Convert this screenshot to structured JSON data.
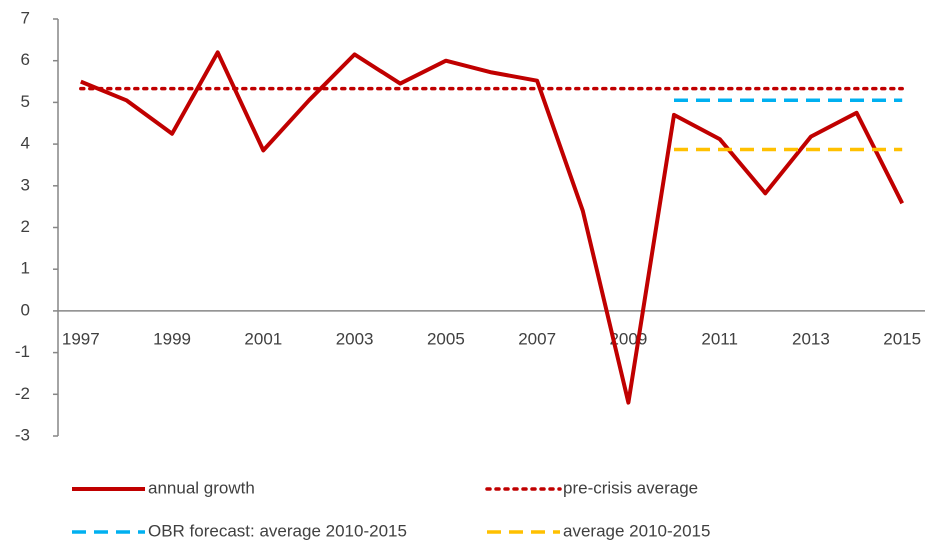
{
  "chart_data": {
    "type": "line",
    "categories": [
      "1997",
      null,
      "1999",
      null,
      "2001",
      null,
      "2003",
      null,
      "2005",
      null,
      "2007",
      null,
      "2009",
      null,
      "2011",
      null,
      "2013",
      null,
      "2015"
    ],
    "series": [
      {
        "name": "annual growth",
        "color": "#c00000",
        "dash": "solid",
        "values": [
          5.5,
          5.05,
          4.25,
          6.2,
          3.85,
          5.05,
          6.15,
          5.45,
          6.0,
          5.72,
          5.52,
          2.4,
          -2.2,
          4.7,
          4.12,
          2.82,
          4.18,
          4.75,
          2.58
        ]
      },
      {
        "name": "pre-crisis average",
        "color": "#c00000",
        "dash": "dotted",
        "values": [
          5.33,
          5.33,
          5.33,
          5.33,
          5.33,
          5.33,
          5.33,
          5.33,
          5.33,
          5.33,
          5.33,
          5.33,
          5.33,
          5.33,
          5.33,
          5.33,
          5.33,
          5.33,
          5.33
        ]
      },
      {
        "name": "OBR forecast: average 2010-2015",
        "color": "#00b0f0",
        "dash": "dashed",
        "values": [
          null,
          null,
          null,
          null,
          null,
          null,
          null,
          null,
          null,
          null,
          null,
          null,
          null,
          5.05,
          5.05,
          5.05,
          5.05,
          5.05,
          5.05
        ]
      },
      {
        "name": "average 2010-2015",
        "color": "#ffc000",
        "dash": "dashed",
        "values": [
          null,
          null,
          null,
          null,
          null,
          null,
          null,
          null,
          null,
          null,
          null,
          null,
          null,
          3.87,
          3.87,
          3.87,
          3.87,
          3.87,
          3.87
        ]
      }
    ],
    "ylim": [
      -3,
      7
    ],
    "yticks": [
      -3,
      -2,
      -1,
      0,
      1,
      2,
      3,
      4,
      5,
      6,
      7
    ],
    "grid": false
  }
}
